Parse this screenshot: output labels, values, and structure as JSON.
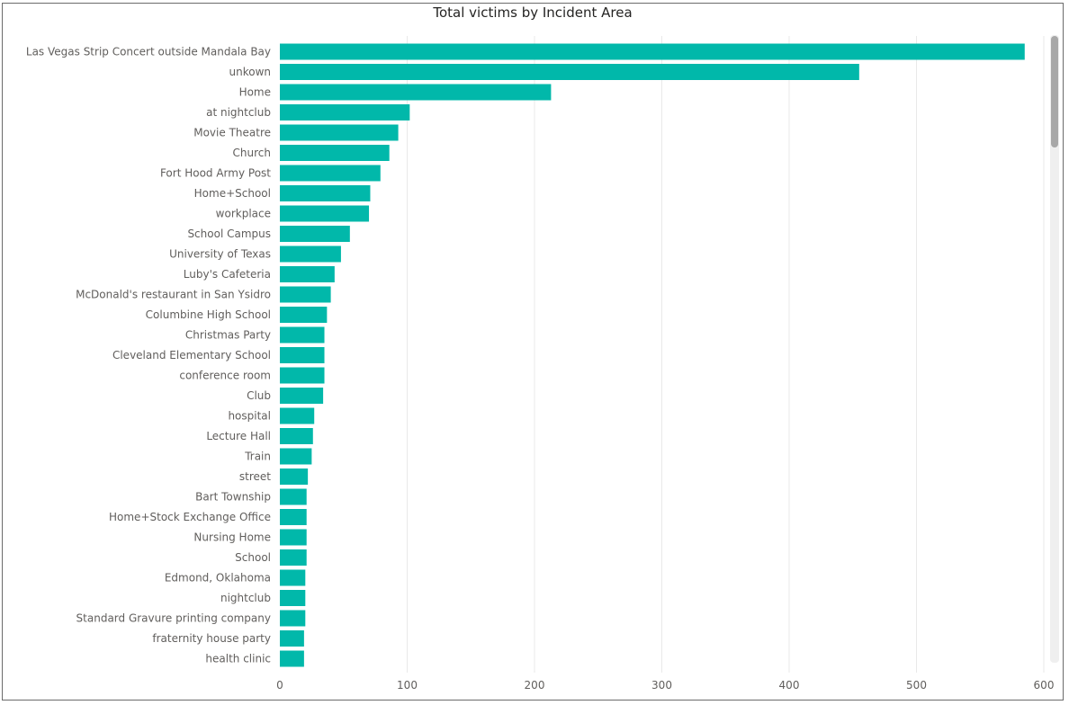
{
  "chart_data": {
    "type": "bar",
    "orientation": "horizontal",
    "title": "Total victims by Incident Area",
    "xlabel": "",
    "ylabel": "",
    "xlim": [
      0,
      600
    ],
    "xticks": [
      0,
      100,
      200,
      300,
      400,
      500,
      600
    ],
    "grid": true,
    "bar_color": "#01B8AA",
    "categories": [
      "Las Vegas Strip Concert outside Mandala Bay",
      "unkown",
      "Home",
      "at nightclub",
      "Movie Theatre",
      "Church",
      "Fort Hood Army Post",
      "Home+School",
      "workplace",
      "School Campus",
      "University of Texas",
      "Luby's Cafeteria",
      "McDonald's restaurant in San Ysidro",
      "Columbine High School",
      "Christmas Party",
      "Cleveland Elementary School",
      "conference room",
      "Club",
      "hospital",
      "Lecture Hall",
      "Train",
      "street",
      "Bart Township",
      "Home+Stock Exchange Office",
      "Nursing Home",
      "School",
      "Edmond, Oklahoma",
      "nightclub",
      "Standard Gravure printing company",
      "fraternity house party",
      "health clinic"
    ],
    "values": [
      585,
      455,
      213,
      102,
      93,
      86,
      79,
      71,
      70,
      55,
      48,
      43,
      40,
      37,
      35,
      35,
      35,
      34,
      27,
      26,
      25,
      22,
      21,
      21,
      21,
      21,
      20,
      20,
      20,
      19,
      19
    ]
  }
}
